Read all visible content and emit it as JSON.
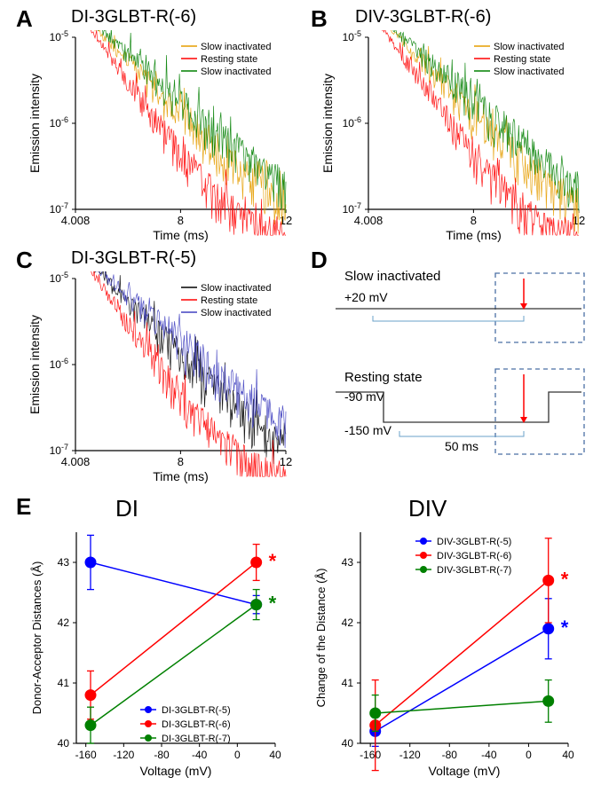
{
  "panels": {
    "A": {
      "letter": "A",
      "title": "DI-3GLBT-R(-6)"
    },
    "B": {
      "letter": "B",
      "title": "DIV-3GLBT-R(-6)"
    },
    "C": {
      "letter": "C",
      "title": "DI-3GLBT-R(-5)"
    },
    "D": {
      "letter": "D"
    },
    "E": {
      "letter": "E",
      "title_left": "DI",
      "title_right": "DIV"
    }
  },
  "decay_chart": {
    "xlabel": "Time (ms)",
    "ylabel": "Emission intensity",
    "xlim": [
      4.008,
      12
    ],
    "xticks": [
      4.008,
      8,
      12
    ],
    "ylim": [
      1e-07,
      1e-05
    ],
    "yticks": [
      "10⁻⁷",
      "10⁻⁶",
      "10⁻⁵"
    ],
    "background_color": "#ffffff",
    "axis_color": "#000000"
  },
  "legendAB": [
    {
      "label": "Slow inactivated",
      "color": "#e69d00"
    },
    {
      "label": "Resting state",
      "color": "#ff0000"
    },
    {
      "label": "Slow inactivated",
      "color": "#008000"
    }
  ],
  "legendC": [
    {
      "label": "Slow inactivated",
      "color": "#000000"
    },
    {
      "label": "Resting state",
      "color": "#ff0000"
    },
    {
      "label": "Slow inactivated",
      "color": "#4040c0"
    }
  ],
  "panelD": {
    "top_label": "Slow inactivated",
    "top_voltage": "+20 mV",
    "bottom_label": "Resting state",
    "bottom_v1": "-90 mV",
    "bottom_v2": "-150 mV",
    "duration": "50 ms",
    "box_color": "#4a6fa5",
    "line_color": "#333333",
    "arrow_color": "#ff0000",
    "bracket_color": "#6aa0c8"
  },
  "panelE": {
    "xlabel": "Voltage (mV)",
    "ylabel_left": "Donor-Acceptor Distances (Å)",
    "ylabel_right": "Change of the Distance (Å)",
    "xlim": [
      -170,
      40
    ],
    "xticks": [
      -160,
      -120,
      -80,
      -40,
      0,
      40
    ],
    "ylim": [
      40,
      43.5
    ],
    "yticks": [
      40,
      41,
      42,
      43
    ],
    "marker_size": 6,
    "DI": {
      "series": [
        {
          "name": "DI-3GLBT-R(-5)",
          "color": "#0000ff",
          "pts": [
            [
              -155,
              43.0,
              0.45
            ],
            [
              20,
              42.3,
              0.15
            ]
          ],
          "star": false
        },
        {
          "name": "DI-3GLBT-R(-6)",
          "color": "#ff0000",
          "pts": [
            [
              -155,
              40.8,
              0.4
            ],
            [
              20,
              43.0,
              0.3
            ]
          ],
          "star": true
        },
        {
          "name": "DI-3GLBT-R(-7)",
          "color": "#008000",
          "pts": [
            [
              -155,
              40.3,
              0.3
            ],
            [
              20,
              42.3,
              0.25
            ]
          ],
          "star": true
        }
      ]
    },
    "DIV": {
      "series": [
        {
          "name": "DIV-3GLBT-R(-5)",
          "color": "#0000ff",
          "pts": [
            [
              -155,
              40.2,
              0.25
            ],
            [
              20,
              41.9,
              0.5
            ]
          ],
          "star": true
        },
        {
          "name": "DIV-3GLBT-R(-6)",
          "color": "#ff0000",
          "pts": [
            [
              -155,
              40.3,
              0.75
            ],
            [
              20,
              42.7,
              0.7
            ]
          ],
          "star": true
        },
        {
          "name": "DIV-3GLBT-R(-7)",
          "color": "#008000",
          "pts": [
            [
              -155,
              40.5,
              0.3
            ],
            [
              20,
              40.7,
              0.35
            ]
          ],
          "star": false
        }
      ]
    }
  }
}
